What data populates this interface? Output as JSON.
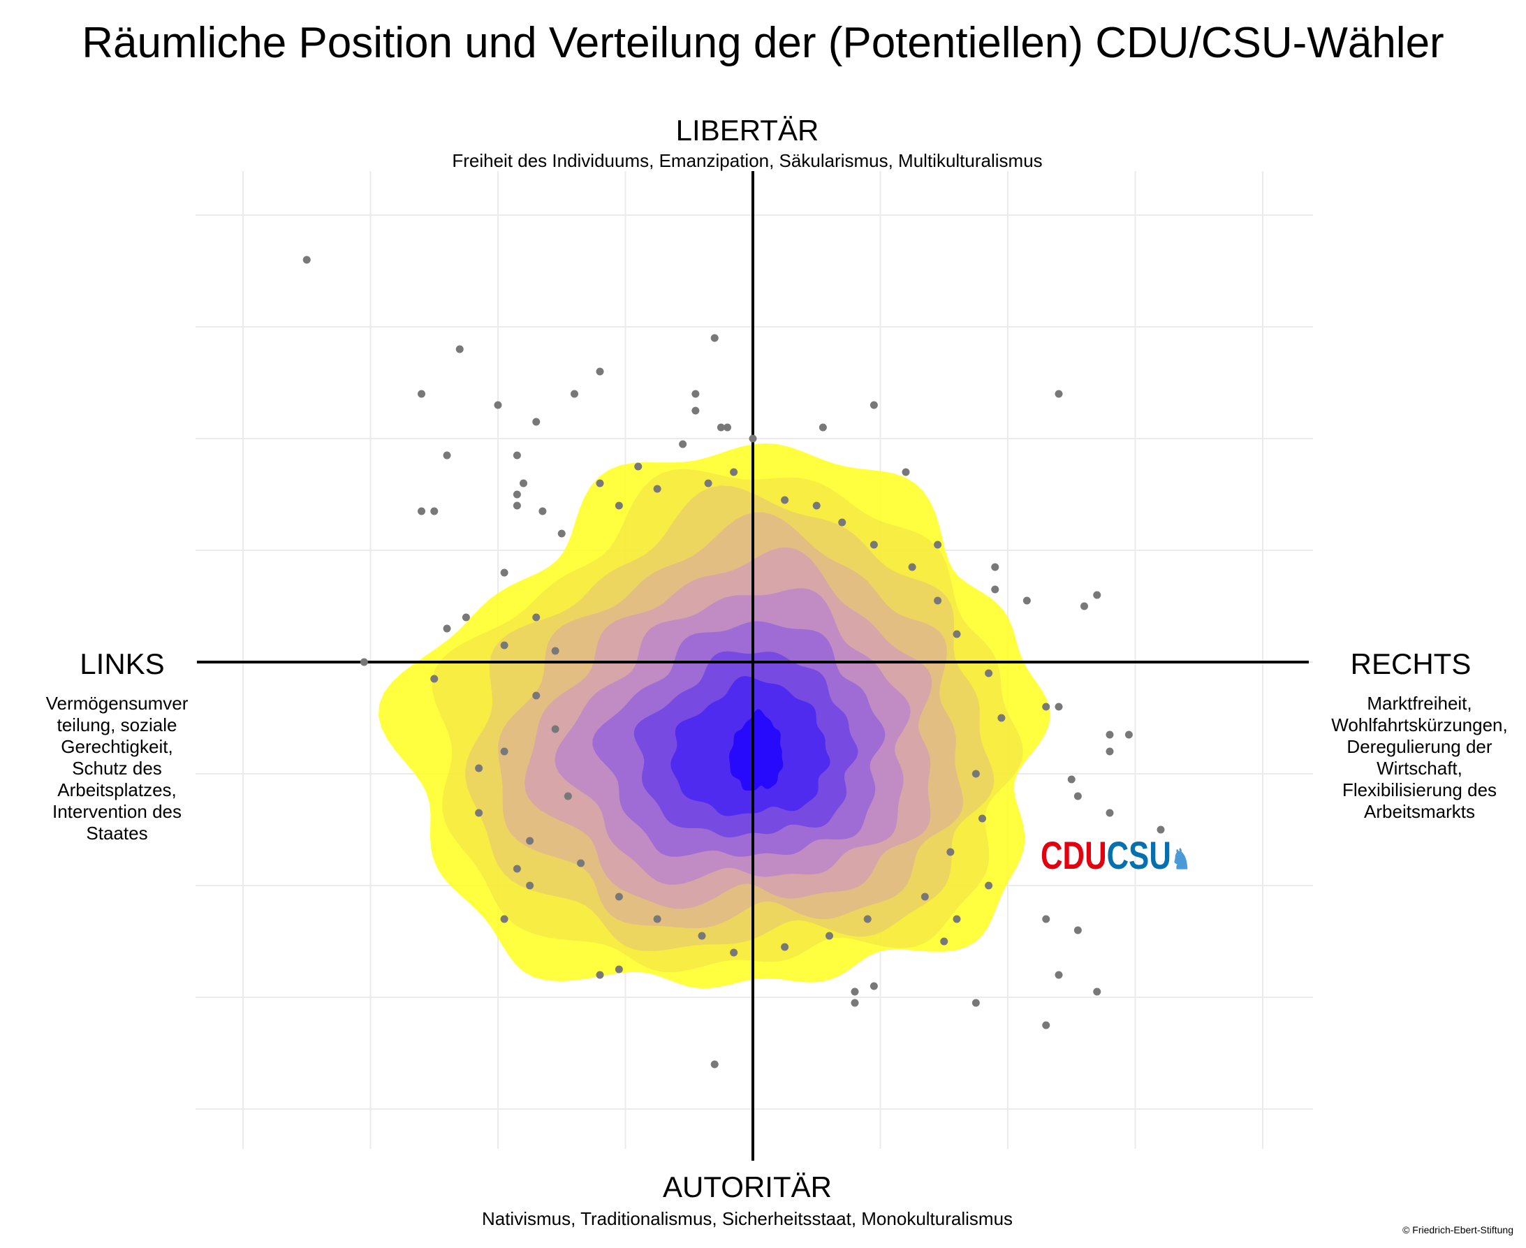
{
  "title": "Räumliche Position und Verteilung der (Potentiellen) CDU/CSU-Wähler",
  "axes": {
    "top": {
      "label": "LIBERTÄR",
      "description": "Freiheit des Individuums, Emanzipation, Säkularismus, Multikulturalismus"
    },
    "bottom": {
      "label": "AUTORITÄR",
      "description": "Nativismus, Traditionalismus, Sicherheitsstaat, Monokulturalismus"
    },
    "left": {
      "label": "LINKS",
      "description_lines": [
        "Vermögensumver",
        "teilung, soziale",
        "Gerechtigkeit,",
        "Schutz des",
        "Arbeitsplatzes,",
        "Intervention des",
        "Staates"
      ]
    },
    "right": {
      "label": "RECHTS",
      "description_lines": [
        "Marktfreiheit,",
        "Wohlfahrtskürzungen,",
        "Deregulierung der",
        "Wirtschaft,",
        "Flexibilisierung des",
        "Arbeitsmarkts"
      ]
    }
  },
  "logo": {
    "cdu": "CDU",
    "csu": "CSU",
    "lion": "♞"
  },
  "copyright": "© Friedrich-Ebert-Stiftung",
  "colors": {
    "density_outer": "#ffff1e",
    "density_inner": "#1a00ff",
    "points": "#787878",
    "grid": "#ebebeb",
    "axis": "#000000"
  },
  "chart_data": {
    "type": "scatter",
    "title": "Räumliche Position und Verteilung der (Potentiellen) CDU/CSU-Wähler",
    "xlabel": "LINKS – RECHTS",
    "ylabel": "AUTORITÄR – LIBERTÄR",
    "xlim": [
      -4.4,
      4.4
    ],
    "ylim": [
      -4.4,
      4.4
    ],
    "grid": true,
    "overlay": "2d density contours (yellow low → purple → blue high)",
    "density": {
      "center": [
        0.1,
        -0.8
      ],
      "peak_center": [
        0.05,
        -0.85
      ],
      "levels": 10,
      "outer_radii": [
        2.1,
        2.3,
        2.8,
        2.5,
        2.9,
        2.6,
        2.0,
        2.25
      ],
      "outer_angles_deg": [
        0,
        45,
        90,
        135,
        180,
        225,
        270,
        315
      ]
    },
    "points": [
      [
        -3.5,
        3.6
      ],
      [
        -2.3,
        2.8
      ],
      [
        -2.6,
        2.4
      ],
      [
        -0.3,
        2.9
      ],
      [
        -1.2,
        2.6
      ],
      [
        -1.4,
        2.4
      ],
      [
        -2.0,
        2.3
      ],
      [
        -1.7,
        2.15
      ],
      [
        -0.45,
        2.4
      ],
      [
        -0.45,
        2.25
      ],
      [
        -0.25,
        2.1
      ],
      [
        -0.2,
        2.1
      ],
      [
        0.0,
        2.0
      ],
      [
        0.55,
        2.1
      ],
      [
        0.95,
        2.3
      ],
      [
        2.4,
        2.4
      ],
      [
        -2.4,
        1.85
      ],
      [
        -1.85,
        1.85
      ],
      [
        -2.6,
        1.35
      ],
      [
        -2.5,
        1.35
      ],
      [
        -1.85,
        1.5
      ],
      [
        -1.85,
        1.4
      ],
      [
        1.2,
        1.7
      ],
      [
        -1.95,
        0.8
      ],
      [
        -2.4,
        0.3
      ],
      [
        -2.25,
        0.4
      ],
      [
        -1.95,
        0.15
      ],
      [
        -3.05,
        0.0
      ],
      [
        -2.5,
        -0.15
      ],
      [
        1.9,
        0.85
      ],
      [
        1.9,
        0.65
      ],
      [
        2.15,
        0.55
      ],
      [
        2.6,
        0.5
      ],
      [
        2.7,
        0.6
      ],
      [
        1.45,
        1.05
      ],
      [
        -1.95,
        -0.8
      ],
      [
        -2.15,
        -0.95
      ],
      [
        -2.15,
        -1.35
      ],
      [
        -1.75,
        -1.6
      ],
      [
        -1.85,
        -1.85
      ],
      [
        -1.75,
        -2.0
      ],
      [
        -1.95,
        -2.3
      ],
      [
        -1.2,
        -2.8
      ],
      [
        -1.05,
        -2.75
      ],
      [
        -0.3,
        -3.6
      ],
      [
        2.3,
        -0.4
      ],
      [
        2.4,
        -0.4
      ],
      [
        2.8,
        -0.65
      ],
      [
        2.8,
        -0.8
      ],
      [
        2.95,
        -0.65
      ],
      [
        2.55,
        -1.2
      ],
      [
        2.8,
        -1.35
      ],
      [
        2.5,
        -1.05
      ],
      [
        3.2,
        -1.5
      ],
      [
        2.3,
        -2.3
      ],
      [
        2.55,
        -2.4
      ],
      [
        2.4,
        -2.8
      ],
      [
        2.7,
        -2.95
      ],
      [
        0.8,
        -2.95
      ],
      [
        0.95,
        -2.9
      ],
      [
        1.75,
        -3.05
      ],
      [
        2.3,
        -3.25
      ],
      [
        0.8,
        -3.05
      ],
      [
        -1.8,
        1.6
      ],
      [
        -1.65,
        1.35
      ],
      [
        -1.5,
        1.15
      ],
      [
        -1.2,
        1.6
      ],
      [
        -1.05,
        1.4
      ],
      [
        -0.9,
        1.75
      ],
      [
        -0.75,
        1.55
      ],
      [
        -0.55,
        1.95
      ],
      [
        -0.35,
        1.6
      ],
      [
        -0.15,
        1.7
      ],
      [
        0.25,
        1.45
      ],
      [
        0.5,
        1.4
      ],
      [
        0.7,
        1.25
      ],
      [
        0.95,
        1.05
      ],
      [
        1.25,
        0.85
      ],
      [
        1.45,
        0.55
      ],
      [
        1.6,
        0.25
      ],
      [
        -1.7,
        0.4
      ],
      [
        -1.55,
        0.1
      ],
      [
        -1.7,
        -0.3
      ],
      [
        -1.55,
        -0.6
      ],
      [
        -1.45,
        -1.2
      ],
      [
        -1.35,
        -1.8
      ],
      [
        -1.05,
        -2.1
      ],
      [
        -0.75,
        -2.3
      ],
      [
        -0.4,
        -2.45
      ],
      [
        -0.15,
        -2.6
      ],
      [
        0.25,
        -2.55
      ],
      [
        0.6,
        -2.45
      ],
      [
        0.9,
        -2.3
      ],
      [
        1.35,
        -2.1
      ],
      [
        1.55,
        -1.7
      ],
      [
        1.8,
        -1.4
      ],
      [
        1.75,
        -1.0
      ],
      [
        1.95,
        -0.5
      ],
      [
        1.85,
        -0.1
      ],
      [
        1.6,
        -2.3
      ],
      [
        1.85,
        -2.0
      ],
      [
        1.5,
        -2.5
      ]
    ]
  }
}
